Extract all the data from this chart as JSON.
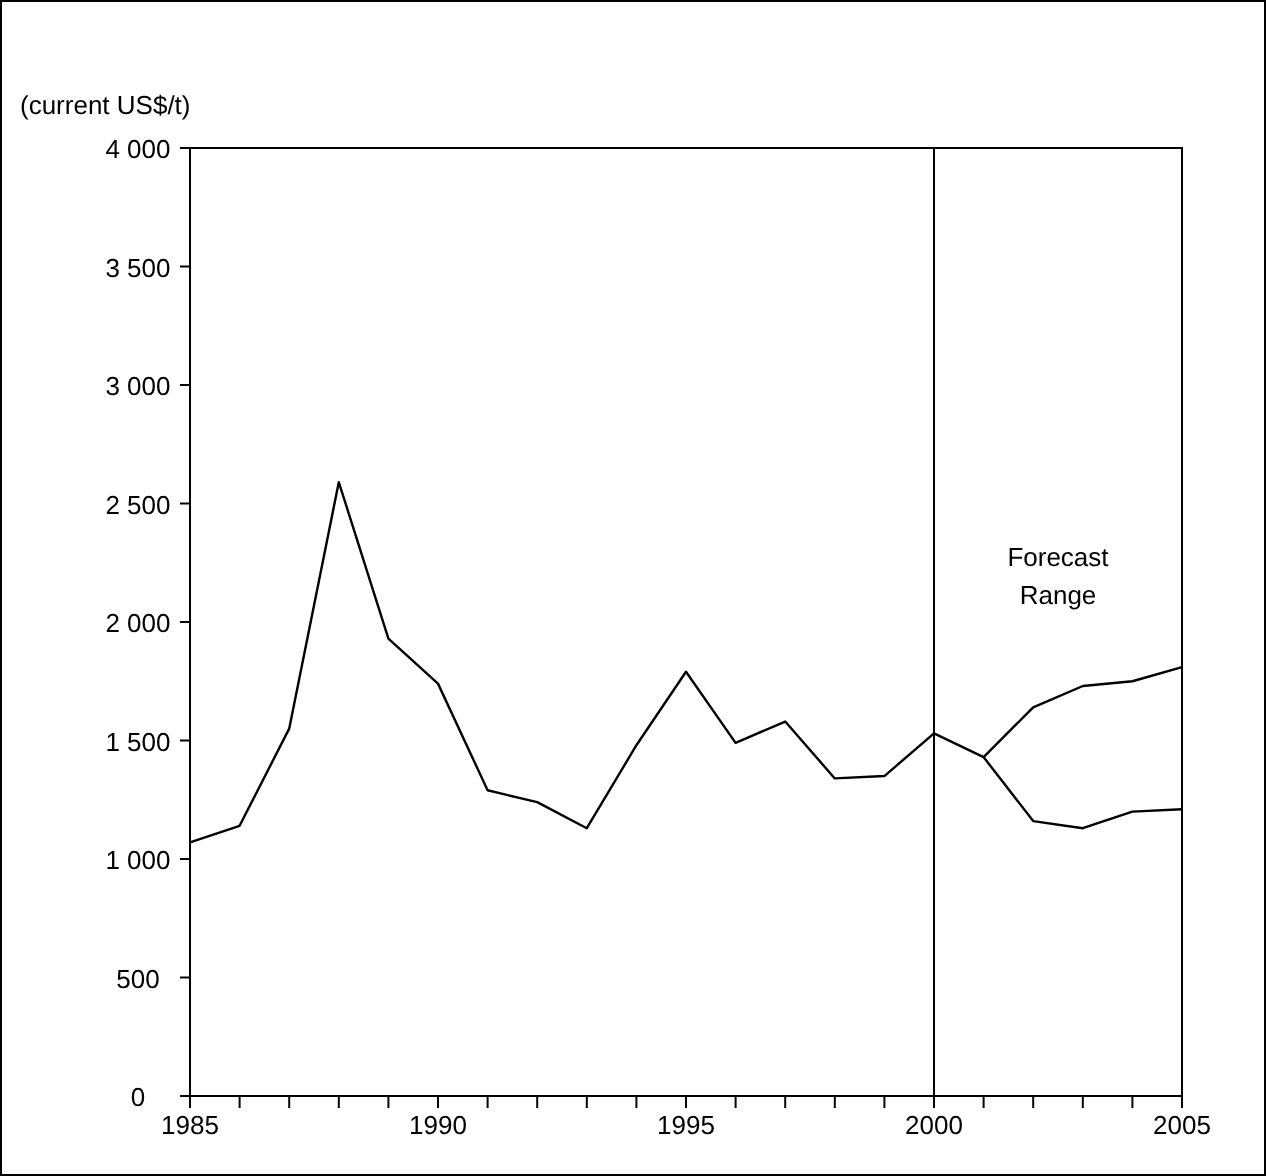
{
  "chart_data": {
    "type": "line",
    "ylabel": "(current US$/t)",
    "xlim": [
      1985,
      2005
    ],
    "xticks": [
      1985,
      {
        "value": 1986,
        "label": null
      },
      {
        "value": 1987,
        "label": null
      },
      {
        "value": 1988,
        "label": null
      },
      {
        "value": 1989,
        "label": null
      },
      1990,
      {
        "value": 1991,
        "label": null
      },
      {
        "value": 1992,
        "label": null
      },
      {
        "value": 1993,
        "label": null
      },
      {
        "value": 1994,
        "label": null
      },
      1995,
      {
        "value": 1996,
        "label": null
      },
      {
        "value": 1997,
        "label": null
      },
      {
        "value": 1998,
        "label": null
      },
      {
        "value": 1999,
        "label": null
      },
      2000,
      {
        "value": 2001,
        "label": null
      },
      {
        "value": 2002,
        "label": null
      },
      {
        "value": 2003,
        "label": null
      },
      {
        "value": 2004,
        "label": null
      },
      2005
    ],
    "ylim": [
      0,
      4000
    ],
    "yticks": [
      0,
      500,
      {
        "value": 1000,
        "label": "1 000"
      },
      {
        "value": 1500,
        "label": "1 500"
      },
      {
        "value": 2000,
        "label": "2 000"
      },
      {
        "value": 2500,
        "label": "2 500"
      },
      {
        "value": 3000,
        "label": "3 000"
      },
      {
        "value": 3500,
        "label": "3 500"
      },
      {
        "value": 4000,
        "label": "4 000"
      }
    ],
    "series": [
      {
        "color": "#000000",
        "x": [
          1985,
          1986,
          1987,
          1988,
          1989,
          1990,
          1991,
          1992,
          1993,
          1994,
          1995,
          1996,
          1997,
          1998,
          1999,
          2000,
          2001,
          2002,
          2003,
          2004,
          2005
        ],
        "values": [
          1070,
          1140,
          1550,
          2590,
          1930,
          1740,
          1290,
          1240,
          1130,
          1480,
          1790,
          1490,
          1580,
          1340,
          1350,
          1530,
          1430,
          1640,
          1730,
          1750,
          1810
        ]
      },
      {
        "color": "#000000",
        "x": [
          2001,
          2002,
          2003,
          2004,
          2005
        ],
        "values": [
          1430,
          1160,
          1130,
          1200,
          1210
        ]
      }
    ],
    "ref_lines": [
      {
        "axis": "x",
        "value": 2000,
        "color": "#000000"
      }
    ],
    "annotations": [
      "Forecast Range"
    ],
    "grid": false,
    "marker": "none",
    "line_style": "solid"
  }
}
